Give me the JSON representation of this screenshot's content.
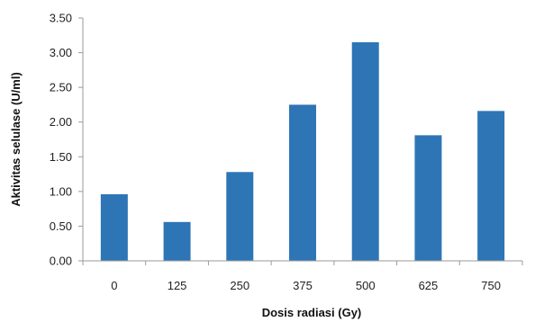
{
  "chart_data": {
    "type": "bar",
    "categories": [
      "0",
      "125",
      "250",
      "375",
      "500",
      "625",
      "750"
    ],
    "values": [
      0.96,
      0.56,
      1.28,
      2.25,
      3.15,
      1.81,
      2.16
    ],
    "xlabel": "Dosis radiasi (Gy)",
    "ylabel": "Aktivitas selulase (U/ml)",
    "ylim": [
      0,
      3.5
    ],
    "yticks": [
      "0.00",
      "0.50",
      "1.00",
      "1.50",
      "2.00",
      "2.50",
      "3.00",
      "3.50"
    ],
    "grid": false,
    "legend": "none",
    "bar_color": "#2e75b6",
    "axis_color": "#9a9a9a"
  }
}
